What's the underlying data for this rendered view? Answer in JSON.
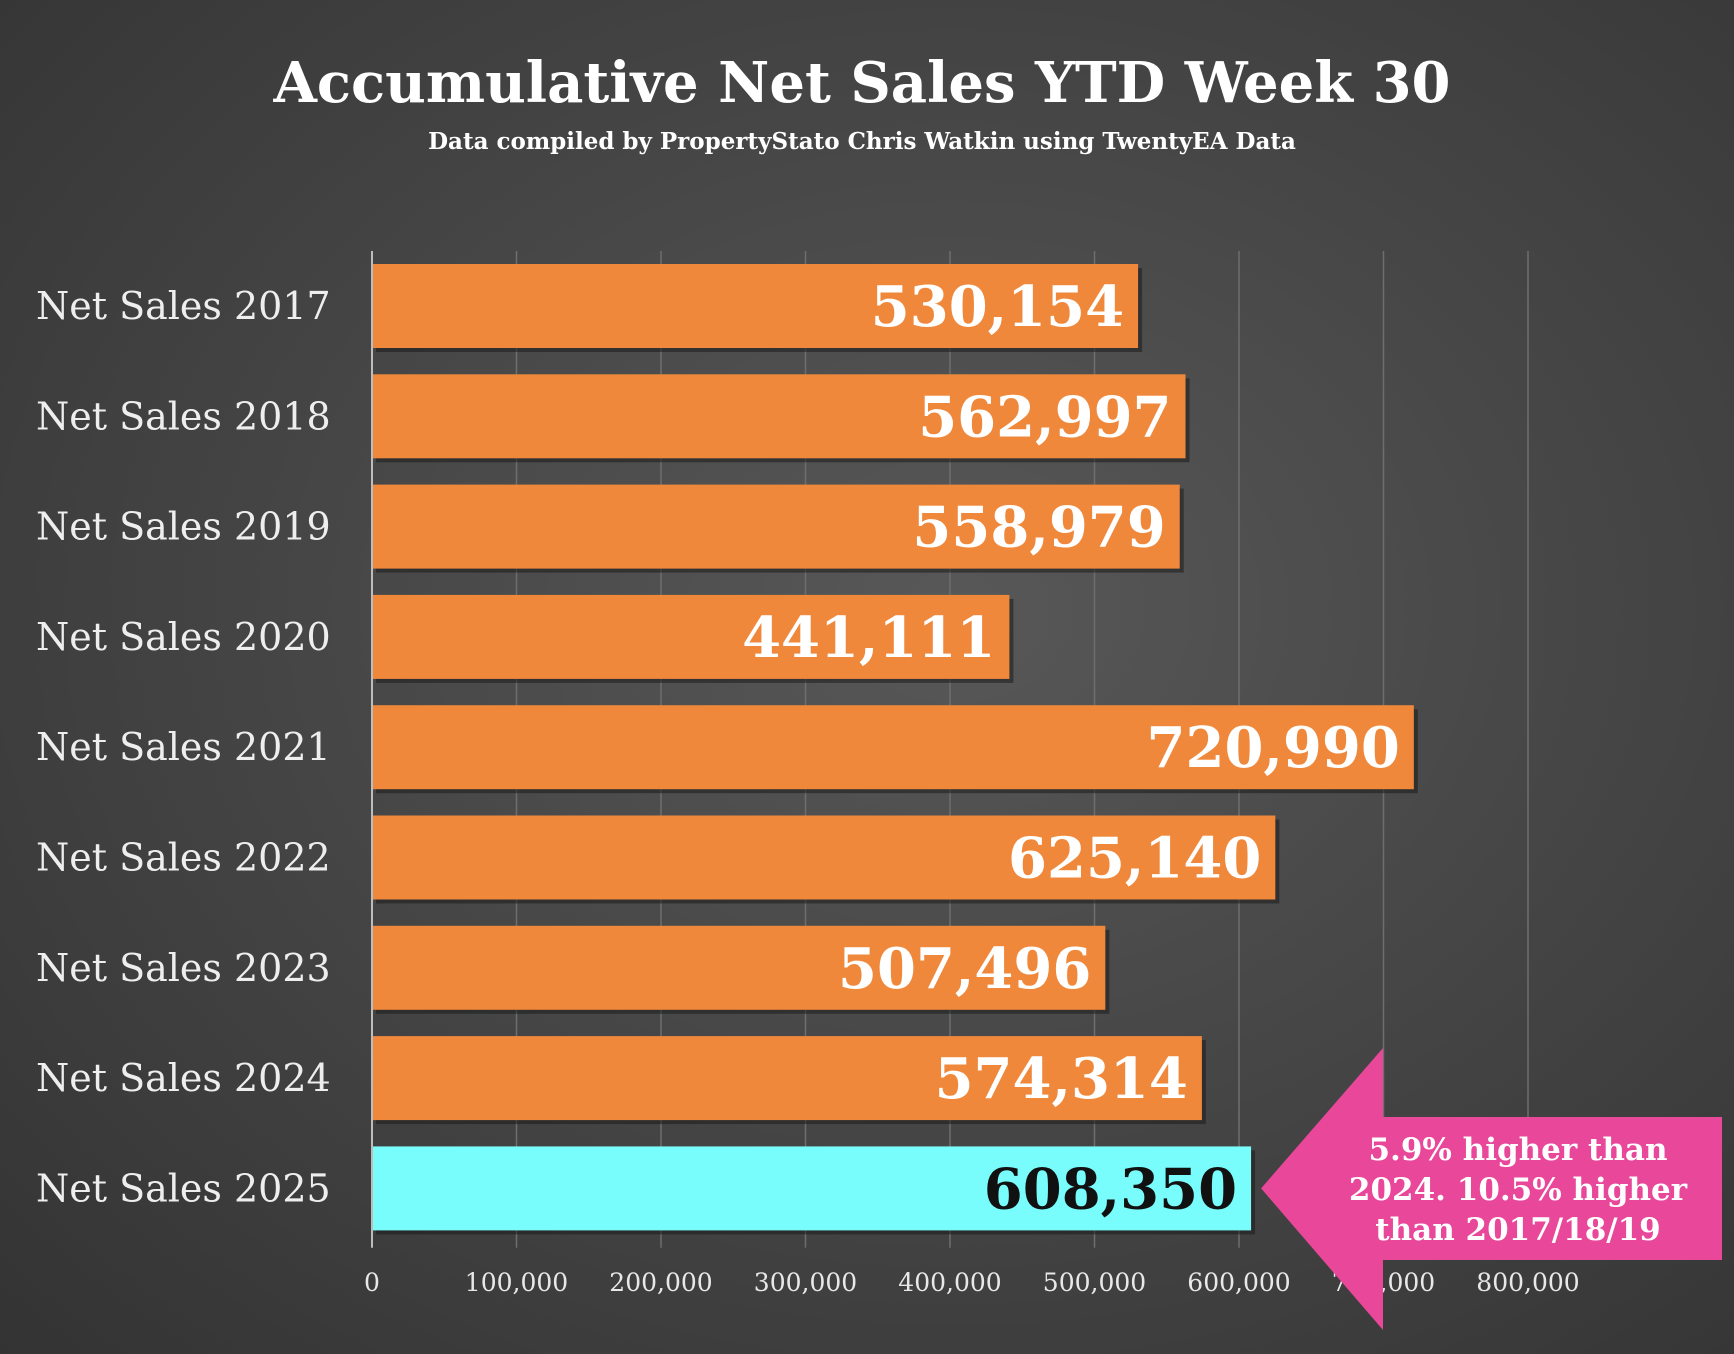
{
  "chart_data": {
    "type": "bar",
    "orientation": "horizontal",
    "title": "Accumulative Net Sales YTD Week 30",
    "subtitle": "Data compiled by PropertyStato Chris Watkin using TwentyEA Data",
    "categories": [
      "Net Sales 2017",
      "Net Sales 2018",
      "Net Sales 2019",
      "Net Sales 2020",
      "Net Sales 2021",
      "Net Sales 2022",
      "Net Sales 2023",
      "Net Sales 2024",
      "Net Sales 2025"
    ],
    "values": [
      530154,
      562997,
      558979,
      441111,
      720990,
      625140,
      507496,
      574314,
      608350
    ],
    "value_labels": [
      "530,154",
      "562,997",
      "558,979",
      "441,111",
      "720,990",
      "625,140",
      "507,496",
      "574,314",
      "608,350"
    ],
    "xlim": [
      0,
      800000
    ],
    "x_ticks": [
      0,
      100000,
      200000,
      300000,
      400000,
      500000,
      600000,
      700000,
      800000
    ],
    "x_tick_labels": [
      "0",
      "100,000",
      "200,000",
      "300,000",
      "400,000",
      "500,000",
      "600,000",
      "700,000",
      "800,000"
    ],
    "grid": true,
    "colors": {
      "bar": "#f0883c",
      "highlight_bar": "#78fcfc",
      "label_on_bar": "#ffffff",
      "label_on_highlight": "#111111",
      "callout": "#e8479a",
      "gridline": "#6e6e6e"
    },
    "highlight_index": 8,
    "annotation": {
      "lines": [
        "5.9% higher than",
        "2024. 10.5% higher",
        "than 2017/18/19"
      ],
      "target_index": 8
    }
  }
}
